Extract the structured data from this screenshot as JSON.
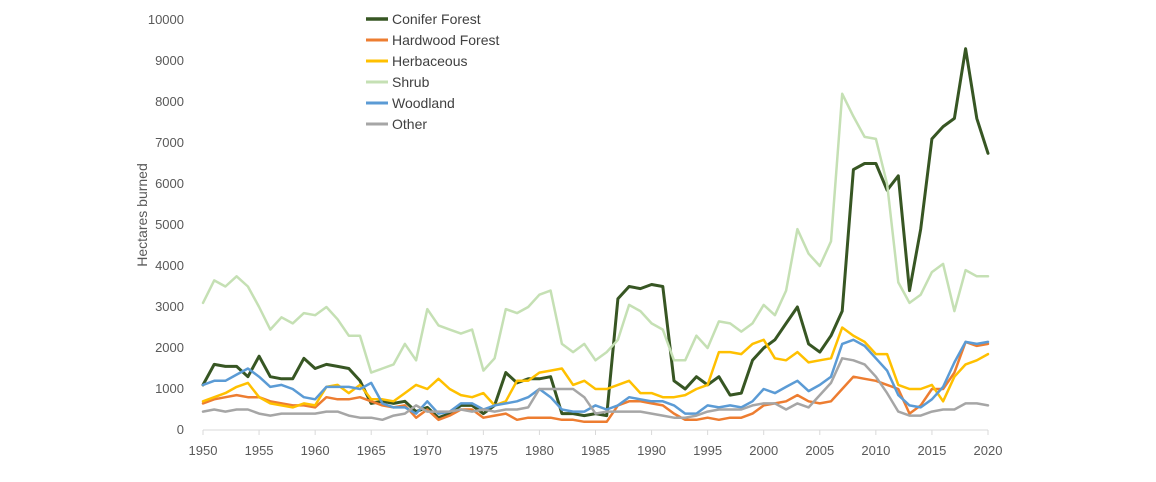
{
  "chart_data": {
    "type": "line",
    "title": "",
    "xlabel": "",
    "ylabel": "Hectares burned",
    "xlim": [
      1950,
      2020
    ],
    "ylim": [
      0,
      10000
    ],
    "x_ticks": [
      1950,
      1955,
      1960,
      1965,
      1970,
      1975,
      1980,
      1985,
      1990,
      1995,
      2000,
      2005,
      2010,
      2015,
      2020
    ],
    "y_ticks": [
      0,
      1000,
      2000,
      3000,
      4000,
      5000,
      6000,
      7000,
      8000,
      9000,
      10000
    ],
    "grid": false,
    "legend_position": "top-left",
    "x": [
      1950,
      1951,
      1952,
      1953,
      1954,
      1955,
      1956,
      1957,
      1958,
      1959,
      1960,
      1961,
      1962,
      1963,
      1964,
      1965,
      1966,
      1967,
      1968,
      1969,
      1970,
      1971,
      1972,
      1973,
      1974,
      1975,
      1976,
      1977,
      1978,
      1979,
      1980,
      1981,
      1982,
      1983,
      1984,
      1985,
      1986,
      1987,
      1988,
      1989,
      1990,
      1991,
      1992,
      1993,
      1994,
      1995,
      1996,
      1997,
      1998,
      1999,
      2000,
      2001,
      2002,
      2003,
      2004,
      2005,
      2006,
      2007,
      2008,
      2009,
      2010,
      2011,
      2012,
      2013,
      2014,
      2015,
      2016,
      2017,
      2018,
      2019,
      2020
    ],
    "series": [
      {
        "name": "Conifer Forest",
        "color": "#375623",
        "width": 3,
        "values": [
          1100,
          1600,
          1550,
          1550,
          1300,
          1800,
          1300,
          1250,
          1250,
          1750,
          1500,
          1600,
          1550,
          1500,
          1200,
          650,
          700,
          650,
          700,
          450,
          550,
          300,
          400,
          600,
          600,
          400,
          600,
          1400,
          1150,
          1250,
          1250,
          1300,
          400,
          400,
          350,
          400,
          350,
          3200,
          3500,
          3450,
          3550,
          3500,
          1200,
          1000,
          1300,
          1100,
          1300,
          850,
          900,
          1700,
          2000,
          2200,
          2600,
          3000,
          2100,
          1900,
          2300,
          2900,
          6350,
          6500,
          6500,
          5850,
          6200,
          3400,
          4900,
          7100,
          7400,
          7600,
          9300,
          7600,
          6750
        ]
      },
      {
        "name": "Hardwood Forest",
        "color": "#ED7D31",
        "width": 2.5,
        "values": [
          650,
          750,
          800,
          850,
          800,
          800,
          700,
          650,
          600,
          600,
          550,
          800,
          750,
          750,
          800,
          700,
          600,
          550,
          600,
          300,
          500,
          250,
          350,
          500,
          500,
          300,
          350,
          400,
          250,
          300,
          300,
          300,
          250,
          250,
          200,
          200,
          200,
          600,
          700,
          700,
          650,
          600,
          400,
          250,
          250,
          300,
          250,
          300,
          300,
          400,
          600,
          650,
          700,
          850,
          700,
          650,
          700,
          1000,
          1300,
          1250,
          1200,
          1100,
          1000,
          400,
          600,
          1000,
          1000,
          1400,
          2150,
          2050,
          2100
        ]
      },
      {
        "name": "Herbaceous",
        "color": "#FFC000",
        "width": 2.5,
        "values": [
          700,
          800,
          900,
          1050,
          1150,
          800,
          650,
          600,
          550,
          650,
          600,
          1050,
          1100,
          900,
          1100,
          750,
          750,
          700,
          900,
          1100,
          1000,
          1250,
          1000,
          850,
          800,
          900,
          600,
          700,
          1200,
          1200,
          1400,
          1450,
          1500,
          1100,
          1200,
          1000,
          1000,
          1100,
          1200,
          900,
          900,
          800,
          800,
          850,
          1000,
          1100,
          1900,
          1900,
          1850,
          2100,
          2200,
          1750,
          1700,
          1900,
          1650,
          1700,
          1750,
          2500,
          2300,
          2150,
          1850,
          1850,
          1100,
          1000,
          1000,
          1100,
          700,
          1300,
          1600,
          1700,
          1850
        ]
      },
      {
        "name": "Shrub",
        "color": "#C5E0B4",
        "width": 2.5,
        "values": [
          3100,
          3650,
          3500,
          3750,
          3500,
          3000,
          2450,
          2750,
          2600,
          2850,
          2800,
          3000,
          2700,
          2300,
          2300,
          1400,
          1500,
          1600,
          2100,
          1700,
          2950,
          2550,
          2450,
          2350,
          2450,
          1450,
          1750,
          2950,
          2850,
          3000,
          3300,
          3400,
          2100,
          1900,
          2100,
          1700,
          1900,
          2200,
          3050,
          2900,
          2600,
          2450,
          1700,
          1700,
          2300,
          2000,
          2650,
          2600,
          2400,
          2600,
          3050,
          2800,
          3400,
          4900,
          4300,
          4000,
          4600,
          8200,
          7650,
          7150,
          7100,
          6000,
          3600,
          3100,
          3300,
          3850,
          4050,
          2900,
          3900,
          3750,
          3750
        ]
      },
      {
        "name": "Woodland",
        "color": "#5B9BD5",
        "width": 2.5,
        "values": [
          1100,
          1200,
          1200,
          1350,
          1500,
          1300,
          1050,
          1100,
          1000,
          800,
          750,
          1050,
          1050,
          1050,
          1000,
          1150,
          650,
          550,
          550,
          400,
          700,
          400,
          450,
          650,
          650,
          500,
          600,
          650,
          700,
          800,
          1000,
          800,
          500,
          450,
          450,
          600,
          500,
          600,
          800,
          750,
          700,
          700,
          600,
          400,
          400,
          600,
          550,
          600,
          550,
          700,
          1000,
          900,
          1050,
          1200,
          950,
          1100,
          1300,
          2100,
          2200,
          2050,
          1750,
          1450,
          850,
          600,
          550,
          750,
          1050,
          1650,
          2150,
          2100,
          2150
        ]
      },
      {
        "name": "Other",
        "color": "#A6A6A6",
        "width": 2.5,
        "values": [
          450,
          500,
          450,
          500,
          500,
          400,
          350,
          400,
          400,
          400,
          400,
          450,
          450,
          350,
          300,
          300,
          250,
          350,
          400,
          600,
          450,
          450,
          450,
          500,
          450,
          500,
          450,
          500,
          500,
          550,
          1000,
          1000,
          1000,
          1000,
          800,
          400,
          450,
          450,
          450,
          450,
          400,
          350,
          300,
          300,
          350,
          450,
          500,
          500,
          500,
          600,
          650,
          650,
          500,
          650,
          550,
          850,
          1150,
          1750,
          1700,
          1600,
          1300,
          900,
          450,
          350,
          350,
          450,
          500,
          500,
          650,
          650,
          600
        ]
      }
    ]
  }
}
